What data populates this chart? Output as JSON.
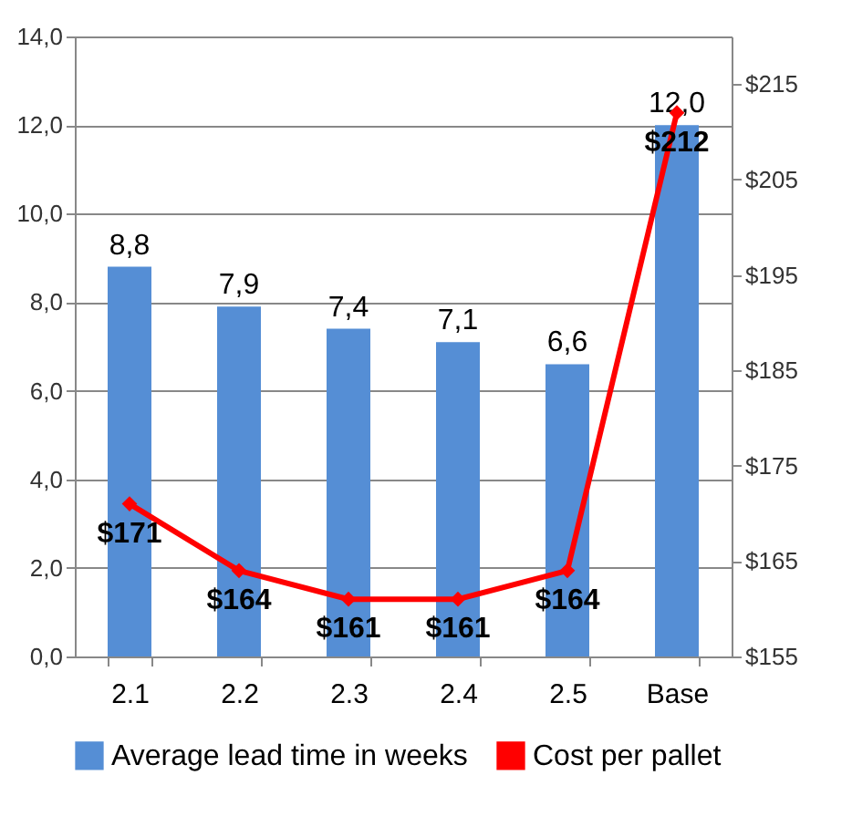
{
  "chart_data": {
    "type": "bar",
    "categories": [
      "2.1",
      "2.2",
      "2.3",
      "2.4",
      "2.5",
      "Base"
    ],
    "series": [
      {
        "name": "Average lead time in weeks",
        "color": "#558ed5",
        "values": [
          8.8,
          7.9,
          7.4,
          7.1,
          6.6,
          12.0
        ],
        "value_labels": [
          "8,8",
          "7,9",
          "7,4",
          "7,1",
          "6,6",
          "12,0"
        ]
      },
      {
        "name": "Cost per pallet",
        "type": "line",
        "axis": "y2",
        "color": "#ff0000",
        "marker": "diamond",
        "values": [
          171,
          164,
          161,
          161,
          164,
          212
        ],
        "value_labels": [
          "$171",
          "$164",
          "$161",
          "$161",
          "$164",
          "$212"
        ]
      }
    ],
    "ylim": [
      0,
      14
    ],
    "yticks": [
      {
        "value": 0,
        "label": "0,0"
      },
      {
        "value": 2,
        "label": "2,0"
      },
      {
        "value": 4,
        "label": "4,0"
      },
      {
        "value": 6,
        "label": "6,0"
      },
      {
        "value": 8,
        "label": "8,0"
      },
      {
        "value": 10,
        "label": "10,0"
      },
      {
        "value": 12,
        "label": "12,0"
      },
      {
        "value": 14,
        "label": "14,0"
      }
    ],
    "y2lim": [
      155,
      220
    ],
    "y2ticks": [
      {
        "value": 155,
        "label": "$155"
      },
      {
        "value": 165,
        "label": "$165"
      },
      {
        "value": 175,
        "label": "$175"
      },
      {
        "value": 185,
        "label": "$185"
      },
      {
        "value": 195,
        "label": "$195"
      },
      {
        "value": 205,
        "label": "$205"
      },
      {
        "value": 215,
        "label": "$215"
      }
    ],
    "grid": "y",
    "legend": "bottom"
  }
}
